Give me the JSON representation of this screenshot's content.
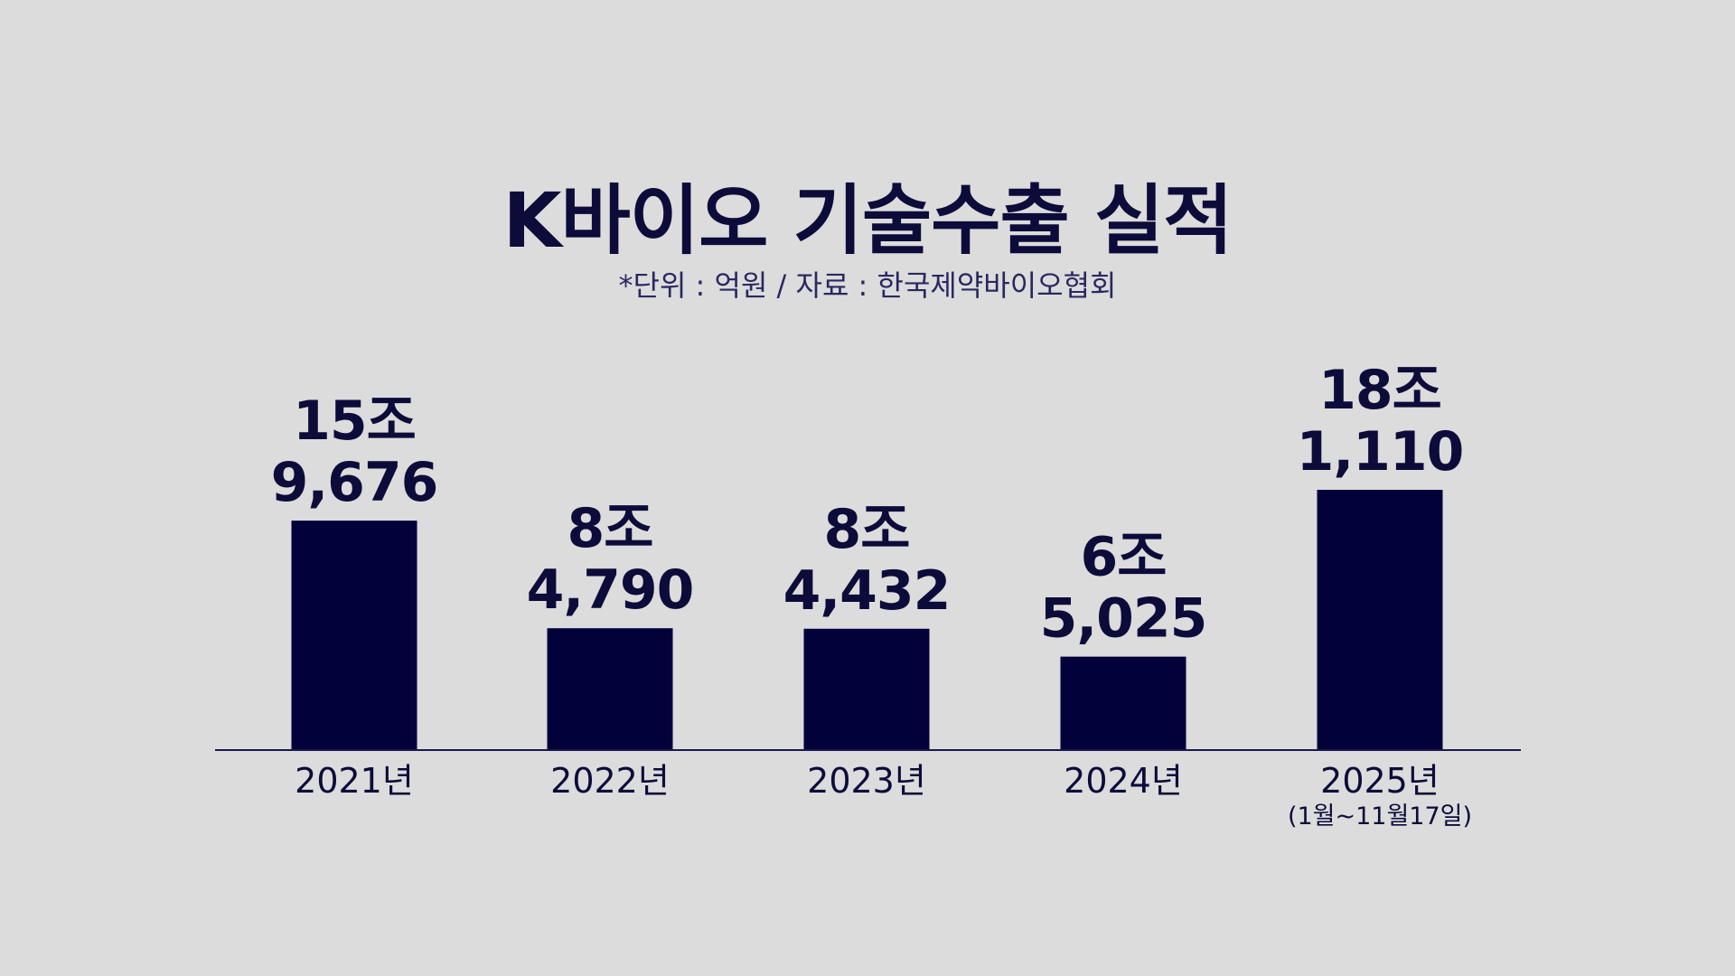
{
  "chart_data": {
    "type": "bar",
    "title": "K바이오 기술수출 실적",
    "subtitle": "*단위 : 억원 / 자료 : 한국제약바이오협회",
    "categories": [
      "2021년",
      "2022년",
      "2023년",
      "2024년",
      "2025년"
    ],
    "category_notes": [
      "",
      "",
      "",
      "",
      "(1월~11월17일)"
    ],
    "values": [
      159676,
      84790,
      84432,
      65025,
      181110
    ],
    "value_labels": [
      [
        "15조",
        "9,676"
      ],
      [
        "8조",
        "4,790"
      ],
      [
        "8조",
        "4,432"
      ],
      [
        "6조",
        "5,025"
      ],
      [
        "18조",
        "1,110"
      ]
    ],
    "unit": "억원",
    "ylim": [
      0,
      300000
    ],
    "grid": false,
    "legend": "none",
    "bar_color": "#03013a",
    "text_color": "#0d0b3a",
    "axis_color": "#1a1850",
    "background_color": "#dcdcdc"
  }
}
